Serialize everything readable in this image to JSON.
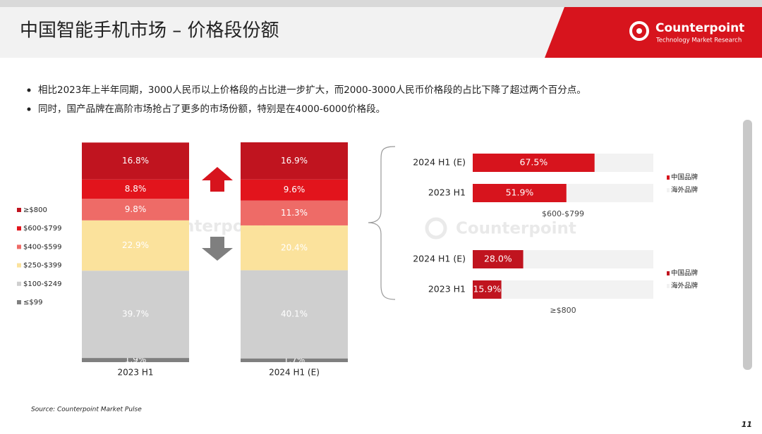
{
  "header": {
    "title": "中国智能手机市场 – 价格段份额",
    "logo": "Counterpoint",
    "logo_tagline": "Technology Market Research"
  },
  "bullets": [
    "相比2023年上半年同期，3000人民币以上价格段的占比进一步扩大，而2000-3000人民币价格段的占比下降了超过两个百分点。",
    "同时，国产品牌在高阶市场抢占了更多的市场份额，特别是在4000-6000价格段。"
  ],
  "watermarks": [
    "Counterpoint",
    "Counterpoint"
  ],
  "source": "Source: Counterpoint Market Pulse",
  "page_number": "11",
  "chart_data": [
    {
      "type": "stacked-bar",
      "categories": [
        "2023 H1",
        "2024 H1 (E)"
      ],
      "ylim": [
        0,
        100
      ],
      "series": [
        {
          "name": "≤$99",
          "color": "#7f7f7f",
          "values": [
            1.9,
            1.7
          ],
          "value_labels": [
            "1.9%",
            "1.7%"
          ]
        },
        {
          "name": "$100-$249",
          "color": "#cfcfcf",
          "values": [
            39.7,
            40.1
          ],
          "value_labels": [
            "39.7%",
            "40.1%"
          ]
        },
        {
          "name": "$250-$399",
          "color": "#fbe29c",
          "values": [
            22.9,
            20.4
          ],
          "value_labels": [
            "22.9%",
            "20.4%"
          ]
        },
        {
          "name": "$400-$599",
          "color": "#ee6b67",
          "values": [
            9.8,
            11.3
          ],
          "value_labels": [
            "9.8%",
            "11.3%"
          ]
        },
        {
          "name": "$600-$799",
          "color": "#e2141c",
          "values": [
            8.8,
            9.6
          ],
          "value_labels": [
            "8.8%",
            "9.6%"
          ]
        },
        {
          "name": "≥$800",
          "color": "#c0141f",
          "values": [
            16.8,
            16.9
          ],
          "value_labels": [
            "16.8%",
            "16.9%"
          ]
        }
      ]
    },
    {
      "type": "stacked-hbar",
      "title": "$600-$799",
      "categories": [
        "2024 H1 (E)",
        "2023 H1"
      ],
      "xlim": [
        0,
        100
      ],
      "series": [
        {
          "name": "中国品牌",
          "color": "#d7141d",
          "values": [
            67.5,
            51.9
          ],
          "value_labels": [
            "67.5%",
            "51.9%"
          ]
        },
        {
          "name": "海外品牌",
          "color": "#f2f2f2",
          "values": [
            32.5,
            48.1
          ]
        }
      ]
    },
    {
      "type": "stacked-hbar",
      "title": "≥$800",
      "categories": [
        "2024 H1 (E)",
        "2023 H1"
      ],
      "xlim": [
        0,
        100
      ],
      "series": [
        {
          "name": "中国品牌",
          "color": "#c0141f",
          "values": [
            28.0,
            15.9
          ],
          "value_labels": [
            "28.0%",
            "15.9%"
          ]
        },
        {
          "name": "海外品牌",
          "color": "#f2f2f2",
          "values": [
            72.0,
            84.1
          ]
        }
      ]
    }
  ]
}
